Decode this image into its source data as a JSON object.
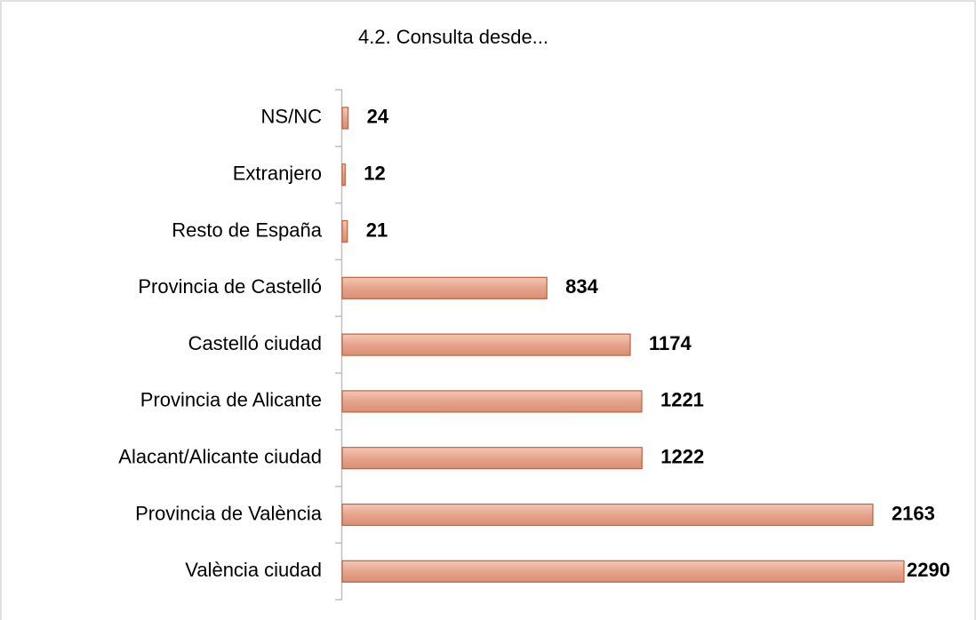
{
  "chart_data": {
    "type": "barh",
    "title": "4.2. Consulta desde...",
    "categories": [
      "NS/NC",
      "Extranjero",
      "Resto de España",
      "Provincia de Castelló",
      "Castelló ciudad",
      "Provincia de Alicante",
      "Alacant/Alicante ciudad",
      "Provincia de València",
      "València ciudad"
    ],
    "values": [
      24,
      12,
      21,
      834,
      1174,
      1221,
      1222,
      2163,
      2290
    ],
    "color": "#e6a48c",
    "edge_color": "#c0603a"
  }
}
